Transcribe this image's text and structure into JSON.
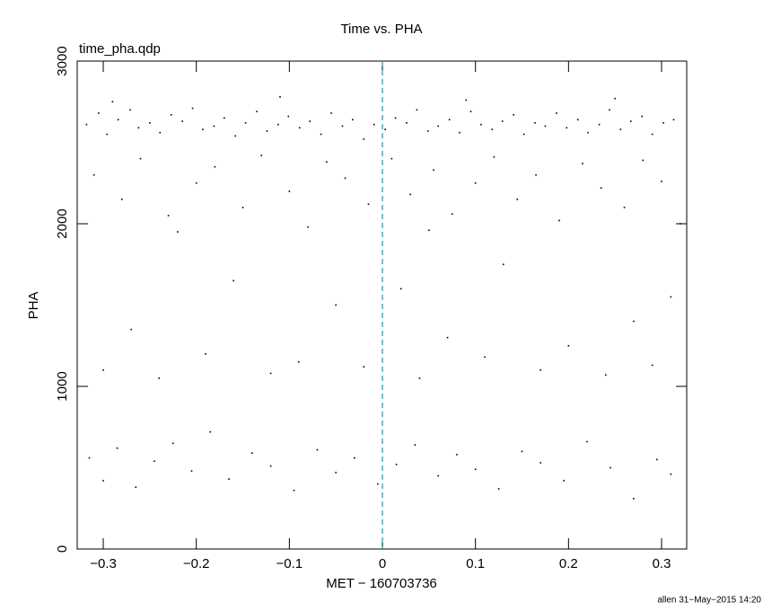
{
  "chart_data": {
    "type": "scatter",
    "title": "Time vs. PHA",
    "subtitle": "time_pha.qdp",
    "x_label": "MET − 160703736",
    "y_label": "PHA",
    "footer": "allen 31−May−2015 14:20",
    "color": "#000000",
    "vline_color": "#1a9bb0",
    "vlines": [
      0
    ],
    "xlim": [
      -0.328,
      0.327
    ],
    "ylim": [
      0,
      3000
    ],
    "xticks": [
      {
        "value": -0.3,
        "label": "−0.3"
      },
      {
        "value": -0.2,
        "label": "−0.2"
      },
      {
        "value": -0.1,
        "label": "−0.1"
      },
      0,
      0.1,
      0.2,
      0.3
    ],
    "yticks": [
      0,
      1000,
      2000,
      3000
    ],
    "x": [
      -0.318,
      -0.305,
      -0.296,
      -0.284,
      -0.271,
      -0.262,
      -0.25,
      -0.239,
      -0.227,
      -0.215,
      -0.204,
      -0.193,
      -0.181,
      -0.17,
      -0.158,
      -0.147,
      -0.135,
      -0.124,
      -0.112,
      -0.101,
      -0.089,
      -0.078,
      -0.066,
      -0.055,
      -0.043,
      -0.032,
      -0.02,
      -0.009,
      0.003,
      0.014,
      0.026,
      0.037,
      0.049,
      0.06,
      0.072,
      0.083,
      0.095,
      0.106,
      0.118,
      0.129,
      0.141,
      0.152,
      0.164,
      0.175,
      0.187,
      0.198,
      0.21,
      0.221,
      0.233,
      0.244,
      0.256,
      0.267,
      0.279,
      0.29,
      0.302,
      0.313,
      -0.29,
      -0.11,
      0.09,
      0.25,
      -0.31,
      -0.28,
      -0.26,
      -0.23,
      -0.2,
      -0.18,
      -0.15,
      -0.13,
      -0.1,
      -0.08,
      -0.06,
      -0.04,
      -0.015,
      0.01,
      0.03,
      0.055,
      0.075,
      0.1,
      0.12,
      0.145,
      0.165,
      0.19,
      0.215,
      0.235,
      0.26,
      0.28,
      0.3,
      0.32,
      -0.22,
      0.05,
      -0.3,
      -0.27,
      -0.24,
      -0.19,
      -0.16,
      -0.12,
      -0.09,
      -0.05,
      -0.02,
      0.02,
      0.04,
      0.07,
      0.11,
      0.13,
      0.17,
      0.2,
      0.24,
      0.27,
      0.29,
      0.31,
      -0.315,
      -0.3,
      -0.285,
      -0.265,
      -0.245,
      -0.225,
      -0.205,
      -0.185,
      -0.165,
      -0.14,
      -0.12,
      -0.095,
      -0.07,
      -0.05,
      -0.03,
      -0.005,
      0.015,
      0.035,
      0.06,
      0.08,
      0.1,
      0.125,
      0.15,
      0.17,
      0.195,
      0.22,
      0.245,
      0.27,
      0.295,
      0.31
    ],
    "values": [
      2610,
      2680,
      2550,
      2640,
      2700,
      2590,
      2620,
      2560,
      2670,
      2630,
      2710,
      2580,
      2600,
      2650,
      2540,
      2620,
      2690,
      2570,
      2610,
      2660,
      2590,
      2630,
      2550,
      2680,
      2600,
      2640,
      2520,
      2610,
      2580,
      2650,
      2620,
      2700,
      2570,
      2600,
      2640,
      2560,
      2690,
      2610,
      2580,
      2630,
      2670,
      2550,
      2620,
      2600,
      2680,
      2590,
      2640,
      2560,
      2610,
      2700,
      2580,
      2630,
      2660,
      2550,
      2620,
      2640,
      2750,
      2780,
      2760,
      2770,
      2300,
      2150,
      2400,
      2050,
      2250,
      2350,
      2100,
      2420,
      2200,
      1980,
      2380,
      2280,
      2120,
      2400,
      2180,
      2330,
      2060,
      2250,
      2410,
      2150,
      2300,
      2020,
      2370,
      2220,
      2100,
      2390,
      2260,
      2000,
      1950,
      1960,
      1100,
      1350,
      1050,
      1200,
      1650,
      1080,
      1150,
      1500,
      1120,
      1600,
      1050,
      1300,
      1180,
      1750,
      1100,
      1250,
      1070,
      1400,
      1130,
      1550,
      560,
      420,
      620,
      380,
      540,
      650,
      480,
      720,
      430,
      590,
      510,
      360,
      610,
      470,
      560,
      400,
      520,
      640,
      450,
      580,
      490,
      370,
      600,
      530,
      420,
      660,
      500,
      310,
      550,
      460
    ]
  }
}
